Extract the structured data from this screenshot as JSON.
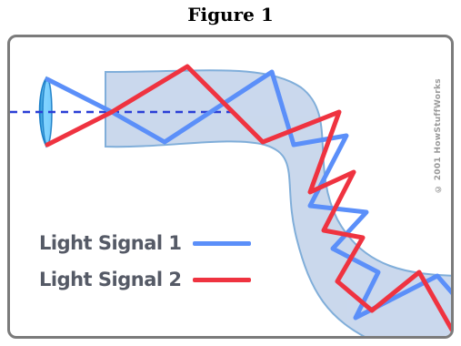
{
  "figure": {
    "title": "Figure 1",
    "copyright": "© 2001 HowStuffWorks"
  },
  "legend": [
    {
      "label": "Light Signal 1",
      "color": "#5b8ff9"
    },
    {
      "label": "Light Signal 2",
      "color": "#ef3340"
    }
  ],
  "colors": {
    "fiber_fill": "#c8d6ec",
    "fiber_edge": "#7aaad8",
    "axis_dash": "#2b3fd6",
    "lens": "#4fb6e8"
  },
  "icons": {
    "light_source": "lens-cone-icon"
  }
}
